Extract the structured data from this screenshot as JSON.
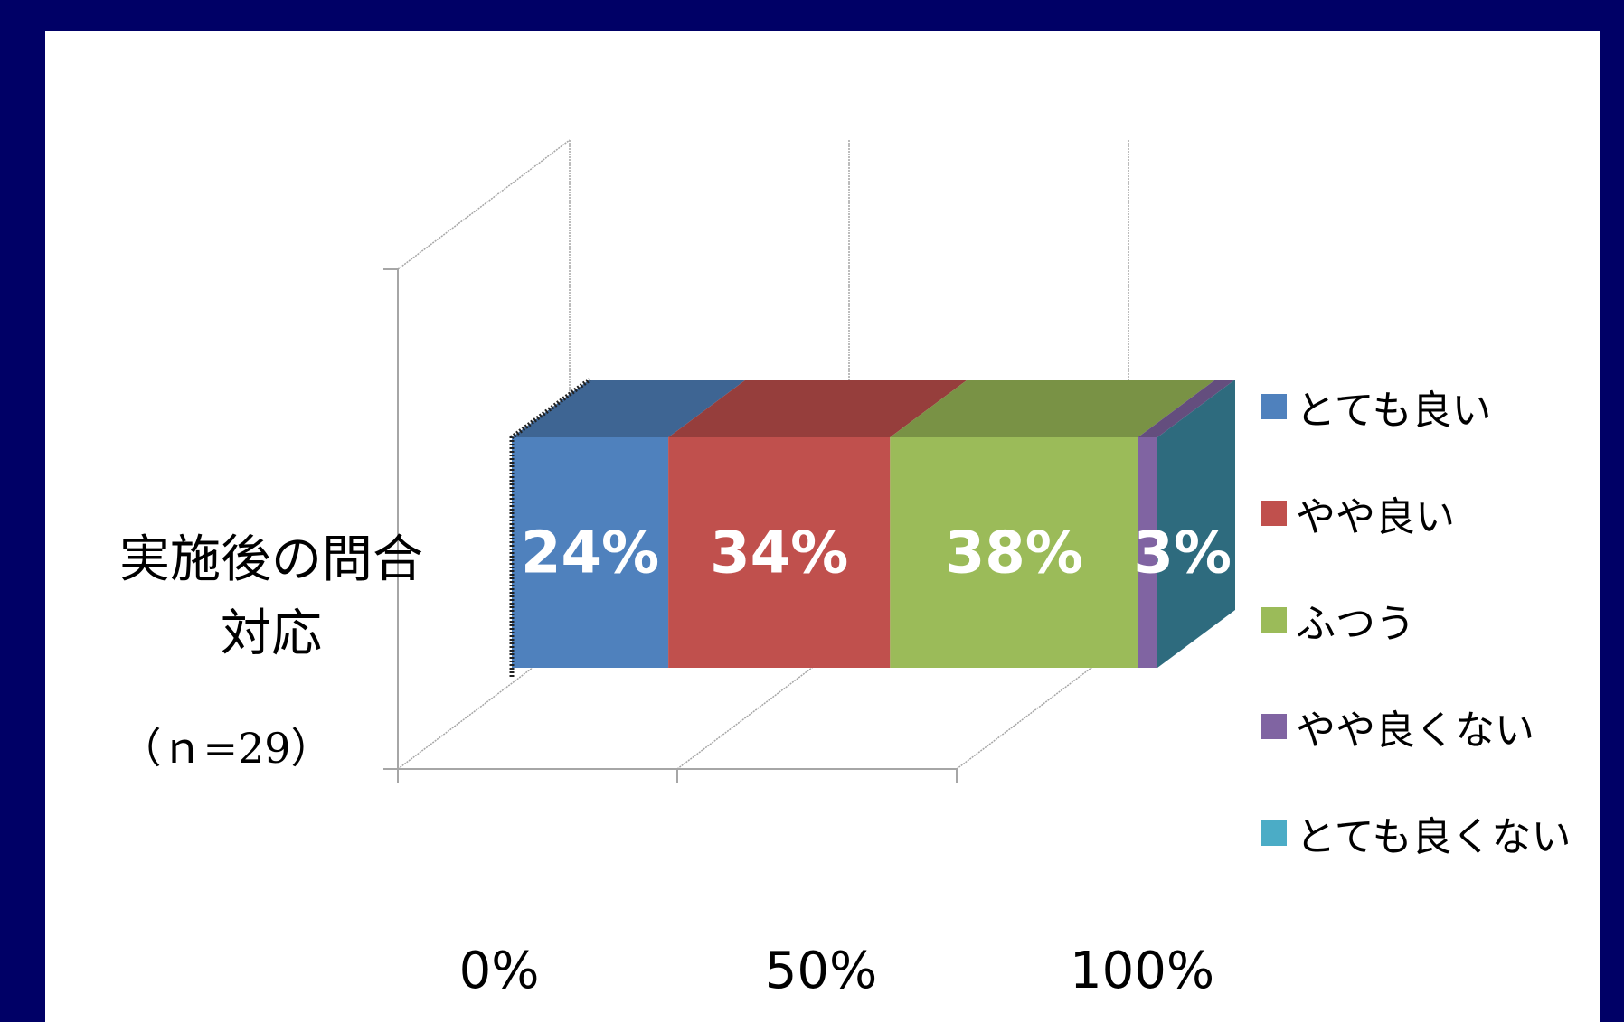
{
  "chart_data": {
    "type": "bar",
    "orientation": "horizontal",
    "stacked": "percent",
    "three_d": true,
    "category": "実施後の問合せ対応",
    "category_lines": [
      "実施後の問合",
      "対応"
    ],
    "category_note": "（ｎ=29）",
    "series": [
      {
        "name": "とても良い",
        "value": 24,
        "label": "24%",
        "color": "#4f81bd"
      },
      {
        "name": "やや良い",
        "value": 34,
        "label": "34%",
        "color": "#c0504d"
      },
      {
        "name": "ふつう",
        "value": 38,
        "label": "38%",
        "color": "#9bbb59"
      },
      {
        "name": "やや良くない",
        "value": 3,
        "label": "3%",
        "color": "#8064a2"
      },
      {
        "name": "とても良くない",
        "value": 0,
        "label": "",
        "color": "#4bacc6"
      }
    ],
    "xaxis": {
      "ticks": [
        0,
        50,
        100
      ],
      "tick_labels": [
        "0%",
        "50%",
        "100%"
      ],
      "range": [
        0,
        100
      ]
    },
    "legend_position": "right",
    "grid": true
  }
}
